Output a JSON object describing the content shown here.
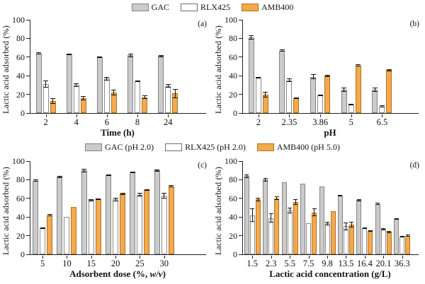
{
  "figure": {
    "background": "#ffffff",
    "axis_color": "#222222",
    "error_bar_color": "#111111"
  },
  "series_styles": {
    "GAC": {
      "fill": "#cbcbcb",
      "border": "#848484"
    },
    "RLX425": {
      "fill": "#ffffff",
      "border": "#8a8a8a"
    },
    "AMB400": {
      "fill": "#f5a94b",
      "border": "#a9742c"
    }
  },
  "legends": {
    "top": [
      {
        "name": "GAC",
        "label": "GAC"
      },
      {
        "name": "RLX425",
        "label": "RLX425"
      },
      {
        "name": "AMB400",
        "label": "AMB400"
      }
    ],
    "middle": [
      {
        "name": "GAC",
        "label": "GAC (pH 2.0)"
      },
      {
        "name": "RLX425",
        "label": "RLX425 (pH 2.0)"
      },
      {
        "name": "AMB400",
        "label": "AMB400 (pH 5.0)"
      }
    ]
  },
  "chart_data": [
    {
      "id": "a",
      "type": "bar",
      "panel_label": "(a)",
      "title": "",
      "xlabel": "Time (h)",
      "xlabel_italic_part": "",
      "ylabel": "Lactic acid adsorbed (%)",
      "ylim": [
        0,
        100
      ],
      "yticks": [
        0,
        20,
        40,
        60,
        80,
        100
      ],
      "grid": false,
      "legend_position": "top-center-shared",
      "categories": [
        "2",
        "4",
        "6",
        "8",
        "24"
      ],
      "series": [
        {
          "name": "GAC",
          "values": [
            64,
            63,
            60,
            62,
            61
          ],
          "errors": [
            1,
            1,
            1,
            2,
            1
          ]
        },
        {
          "name": "RLX425",
          "values": [
            31,
            30,
            37,
            34,
            29
          ],
          "errors": [
            4,
            2,
            2,
            1,
            2
          ]
        },
        {
          "name": "AMB400",
          "values": [
            13,
            16,
            22,
            17,
            21
          ],
          "errors": [
            3,
            2,
            3,
            2,
            5
          ]
        }
      ]
    },
    {
      "id": "b",
      "type": "bar",
      "panel_label": "(b)",
      "title": "",
      "xlabel": "pH",
      "xlabel_italic_part": "",
      "ylabel": "Lactic acid adsorbed (%)",
      "ylim": [
        0,
        100
      ],
      "yticks": [
        0,
        20,
        40,
        60,
        80,
        100
      ],
      "grid": false,
      "legend_position": "top-center-shared",
      "categories": [
        "2",
        "2.35",
        "3.86",
        "5",
        "6.5"
      ],
      "series": [
        {
          "name": "GAC",
          "values": [
            81,
            67,
            39,
            25,
            25
          ],
          "errors": [
            2,
            1,
            3,
            2,
            2
          ]
        },
        {
          "name": "RLX425",
          "values": [
            38,
            35,
            19,
            9,
            7
          ],
          "errors": [
            1,
            2,
            1,
            1,
            1
          ]
        },
        {
          "name": "AMB400",
          "values": [
            20,
            16,
            40,
            51,
            46
          ],
          "errors": [
            3,
            1,
            1,
            1,
            1
          ]
        }
      ]
    },
    {
      "id": "c",
      "type": "bar",
      "panel_label": "(c)",
      "title": "",
      "xlabel": "Adsorbent dose (%, w/v)",
      "xlabel_italic_part": "w/v",
      "ylabel": "Lactic acid adsorbed (%)",
      "ylim": [
        0,
        100
      ],
      "yticks": [
        0,
        20,
        40,
        60,
        80,
        100
      ],
      "grid": false,
      "legend_position": "top-center-shared",
      "categories": [
        "5",
        "10",
        "15",
        "20",
        "25",
        "30"
      ],
      "series": [
        {
          "name": "GAC",
          "values": [
            79,
            83,
            90,
            85,
            88,
            90
          ],
          "errors": [
            1,
            1,
            2,
            1,
            1,
            1
          ]
        },
        {
          "name": "RLX425",
          "values": [
            28,
            40,
            58,
            59,
            64,
            63
          ],
          "errors": [
            1,
            0,
            1,
            2,
            2,
            3
          ]
        },
        {
          "name": "AMB400",
          "values": [
            42,
            51,
            59,
            65,
            69,
            73
          ],
          "errors": [
            1,
            0,
            1,
            1,
            1,
            1
          ]
        }
      ]
    },
    {
      "id": "d",
      "type": "bar",
      "panel_label": "(d)",
      "title": "",
      "xlabel": "Lactic acid concentration (g/L)",
      "xlabel_italic_part": "",
      "ylabel": "Lactic acid adsorbed (%)",
      "ylim": [
        0,
        100
      ],
      "yticks": [
        0,
        20,
        40,
        60,
        80,
        100
      ],
      "grid": false,
      "legend_position": "top-center-shared",
      "categories": [
        "1.5",
        "2.3",
        "5.5",
        "7.5",
        "9.8",
        "13.5",
        "16.4",
        "20.1",
        "36.3"
      ],
      "series": [
        {
          "name": "GAC",
          "values": [
            84,
            80,
            77,
            76,
            73,
            63,
            58,
            54,
            38
          ],
          "errors": [
            2,
            2,
            0,
            0,
            0,
            1,
            1,
            1,
            1
          ]
        },
        {
          "name": "RLX425",
          "values": [
            42,
            39,
            47,
            33,
            33,
            30,
            28,
            27,
            19
          ],
          "errors": [
            7,
            5,
            3,
            0,
            2,
            4,
            1,
            1,
            1
          ]
        },
        {
          "name": "AMB400",
          "values": [
            59,
            60,
            56,
            45,
            46,
            32,
            25,
            24,
            20
          ],
          "errors": [
            2,
            2,
            3,
            4,
            0,
            3,
            1,
            1,
            1
          ]
        }
      ]
    }
  ]
}
